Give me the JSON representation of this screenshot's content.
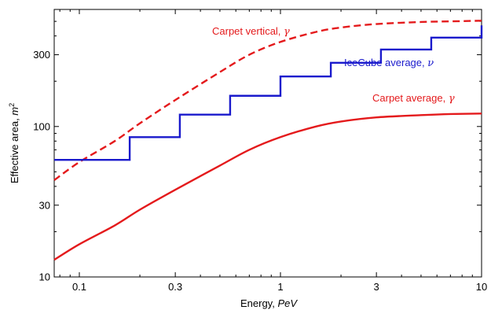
{
  "chart_data": {
    "type": "line",
    "xscale": "log",
    "yscale": "log",
    "xlim": [
      0.075,
      10
    ],
    "ylim": [
      10,
      600
    ],
    "grid": false,
    "xlabel_text": "Energy, ",
    "xlabel_unit": "PeV",
    "ylabel_text": "Effective area, ",
    "ylabel_unit": "m",
    "ylabel_exp": "2",
    "x_ticks": [
      0.1,
      0.3,
      1,
      3,
      10
    ],
    "x_tick_labels": [
      "0.1",
      "0.3",
      "1",
      "3",
      "10"
    ],
    "y_ticks": [
      10,
      30,
      100,
      300
    ],
    "y_tick_labels": [
      "10",
      "30",
      "100",
      "300"
    ],
    "series": [
      {
        "name": "Carpet vertical, ",
        "symbol": "γ",
        "color": "#e41a1c",
        "style": "dashed",
        "x": [
          0.075,
          0.1,
          0.15,
          0.2,
          0.3,
          0.5,
          0.7,
          1,
          1.5,
          2,
          3,
          5,
          7,
          10
        ],
        "y": [
          44,
          58,
          80,
          105,
          150,
          230,
          300,
          365,
          425,
          455,
          480,
          495,
          500,
          505
        ]
      },
      {
        "name": "Carpet average, ",
        "symbol": "γ",
        "color": "#e41a1c",
        "style": "solid",
        "x": [
          0.075,
          0.1,
          0.15,
          0.2,
          0.3,
          0.5,
          0.7,
          1,
          1.5,
          2,
          3,
          5,
          7,
          10
        ],
        "y": [
          13,
          16.5,
          22,
          28,
          38,
          55,
          70,
          85,
          100,
          108,
          115,
          119,
          121,
          122
        ]
      },
      {
        "name": "IceCube average, ",
        "symbol": "ν",
        "color": "#1a1acc",
        "style": "step",
        "x": [
          0.075,
          0.1,
          0.178,
          0.316,
          0.562,
          1.0,
          1.78,
          3.16,
          5.62,
          10
        ],
        "y": [
          60,
          60,
          85,
          120,
          160,
          215,
          265,
          325,
          390,
          470
        ]
      }
    ],
    "annotations": [
      {
        "text": "Carpet vertical, ",
        "symbol": "γ",
        "color": "#e41a1c"
      },
      {
        "text": "IceCube average, ",
        "symbol": "ν",
        "color": "#1a1acc"
      },
      {
        "text": "Carpet average, ",
        "symbol": "γ",
        "color": "#e41a1c"
      }
    ]
  }
}
